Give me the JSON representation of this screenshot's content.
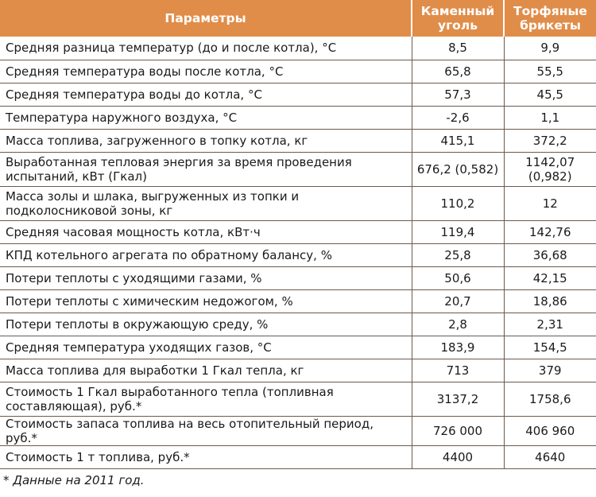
{
  "header": {
    "param": "Параметры",
    "coal": "Каменный уголь",
    "peat": "Торфяные брикеты"
  },
  "rows": [
    {
      "label": "Средняя разница температур (до и после котла), °С",
      "coal": "8,5",
      "peat": "9,9"
    },
    {
      "label": "Средняя температура воды после котла, °С",
      "coal": "65,8",
      "peat": "55,5"
    },
    {
      "label": "Средняя температура воды до котла, °С",
      "coal": "57,3",
      "peat": "45,5"
    },
    {
      "label": "Температура наружного воздуха, °С",
      "coal": "-2,6",
      "peat": "1,1"
    },
    {
      "label": "Масса топлива, загруженного в топку котла, кг",
      "coal": "415,1",
      "peat": "372,2"
    },
    {
      "label": "Выработанная тепловая энергия за время проведения испытаний, кВт (Гкал)",
      "coal": "676,2 (0,582)",
      "peat": "1142,07 (0,982)"
    },
    {
      "label": "Масса золы и шлака, выгруженных из топки и подколосниковой зоны, кг",
      "coal": "110,2",
      "peat": "12"
    },
    {
      "label": "Средняя часовая мощность котла, кВт·ч",
      "coal": "119,4",
      "peat": "142,76"
    },
    {
      "label": "КПД котельного агрегата по обратному балансу, %",
      "coal": "25,8",
      "peat": "36,68"
    },
    {
      "label": "Потери теплоты с уходящими газами, %",
      "coal": "50,6",
      "peat": "42,15"
    },
    {
      "label": "Потери теплоты с химическим недожогом, %",
      "coal": "20,7",
      "peat": "18,86"
    },
    {
      "label": "Потери теплоты в окружающую среду, %",
      "coal": "2,8",
      "peat": "2,31"
    },
    {
      "label": "Средняя температура уходящих газов, °С",
      "coal": "183,9",
      "peat": "154,5"
    },
    {
      "label": "Масса топлива для выработки 1 Гкал тепла, кг",
      "coal": "713",
      "peat": "379"
    },
    {
      "label": "Стоимость 1 Гкал выработанного тепла (топливная составляющая), руб.*",
      "coal": "3137,2",
      "peat": "1758,6"
    },
    {
      "label": "Стоимость запаса топлива на весь отопительный период, руб.*",
      "coal": "726 000",
      "peat": "406 960"
    },
    {
      "label": "Стоимость 1 т топлива, руб.*",
      "coal": "4400",
      "peat": "4640"
    }
  ],
  "footnote": "* Данные на 2011 год.",
  "colors": {
    "header_bg": "#e08d4a",
    "header_text": "#ffffff",
    "grid": "#6b5a4e"
  }
}
